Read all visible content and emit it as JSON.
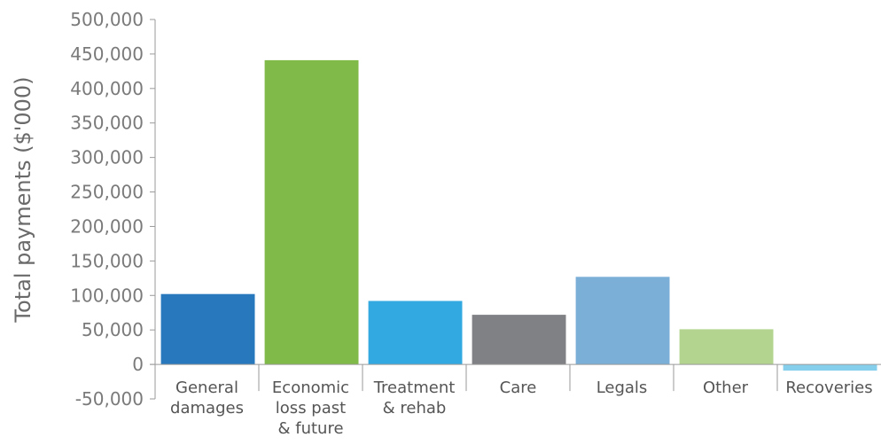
{
  "chart_data": {
    "type": "bar",
    "title": "",
    "xlabel": "",
    "ylabel": "Total payments ($'000)",
    "ylim": [
      -50000,
      500000
    ],
    "yticks": [
      500000,
      450000,
      400000,
      350000,
      300000,
      250000,
      200000,
      150000,
      100000,
      50000,
      0,
      -50000
    ],
    "ytick_labels": [
      "500,000",
      "450,000",
      "400,000",
      "350,000",
      "300,000",
      "250,000",
      "200,000",
      "150,000",
      "100,000",
      "50,000",
      "0",
      "-50,000"
    ],
    "categories": [
      [
        "General",
        "damages"
      ],
      [
        "Economic",
        "loss past",
        "& future"
      ],
      [
        "Treatment",
        "& rehab"
      ],
      [
        "Care"
      ],
      [
        "Legals"
      ],
      [
        "Other"
      ],
      [
        "Recoveries"
      ]
    ],
    "values": [
      102000,
      441000,
      92000,
      72000,
      127000,
      51000,
      -9000
    ],
    "colors": [
      "#2878be",
      "#80ba48",
      "#32a9e0",
      "#808184",
      "#7bafd8",
      "#b3d48f",
      "#86cfec"
    ],
    "grid": false,
    "legend": "none"
  }
}
